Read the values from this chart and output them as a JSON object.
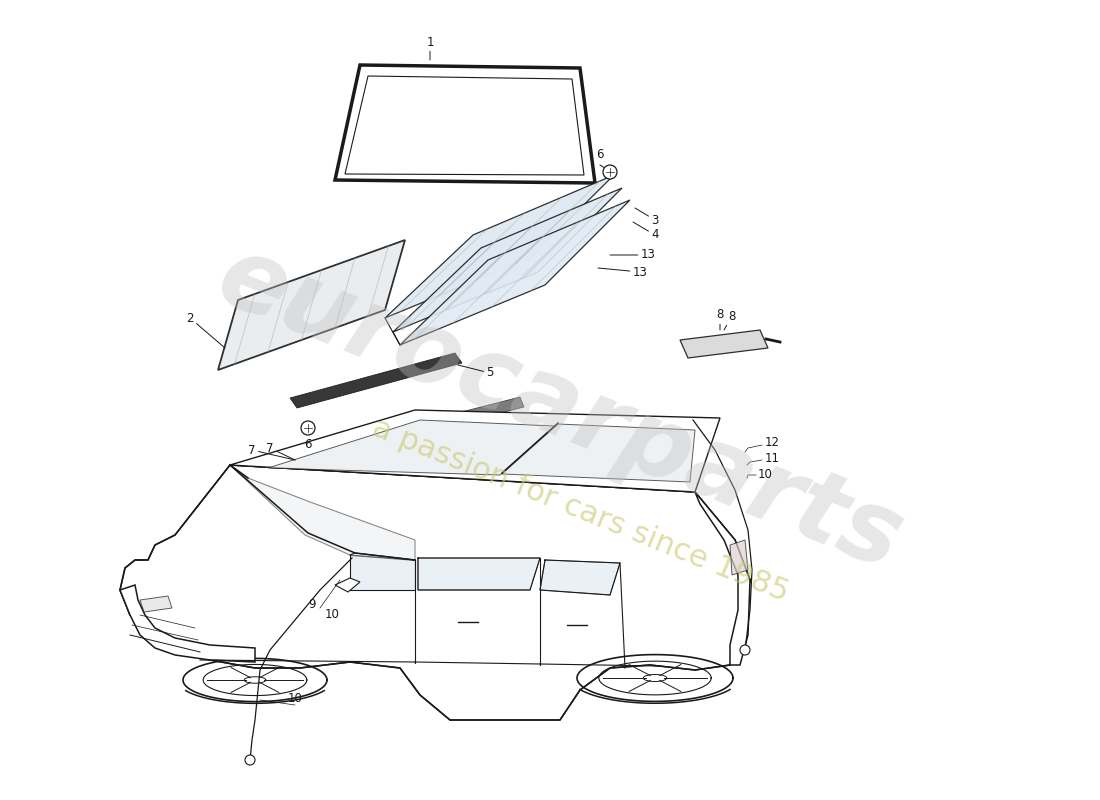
{
  "bg": "#ffffff",
  "lc": "#1a1a1a",
  "wm1": "eurocarparts",
  "wm2": "a passion for cars since 1985",
  "wm1_color": "#c0c0c0",
  "wm2_color": "#c8c870",
  "wm1_alpha": 0.38,
  "wm2_alpha": 0.6,
  "wm1_size": 72,
  "wm2_size": 22,
  "wm_rotation": -22,
  "label_fs": 8.5
}
